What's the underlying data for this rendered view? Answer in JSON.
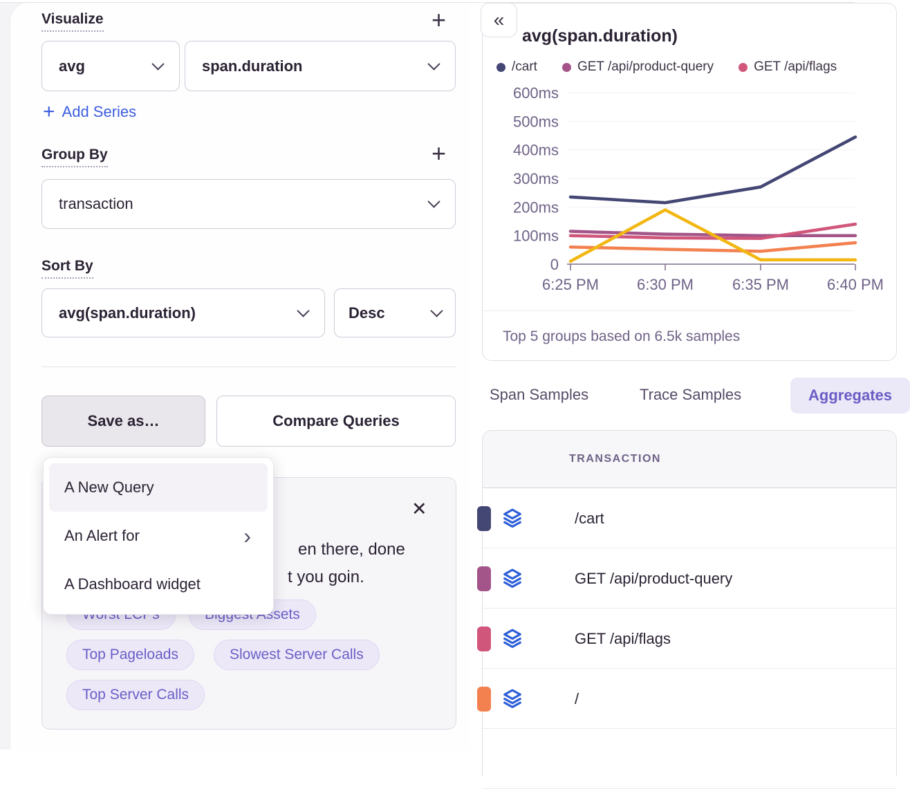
{
  "left_panel": {
    "visualize": {
      "label": "Visualize",
      "add_button": "+",
      "aggregate": "avg",
      "field": "span.duration",
      "add_series_plus": "+",
      "add_series": "Add Series"
    },
    "group_by": {
      "label": "Group By",
      "add_button": "+",
      "value": "transaction"
    },
    "sort_by": {
      "label": "Sort By",
      "field": "avg(span.duration)",
      "direction": "Desc"
    },
    "buttons": {
      "save_as": "Save as…",
      "compare": "Compare Queries"
    },
    "save_menu": {
      "items": [
        "A New Query",
        "An Alert for",
        "A Dashboard widget"
      ],
      "submenu_arrow": "›"
    },
    "banner": {
      "close_icon": "✕",
      "line1_fragment": "en there, done",
      "line2_fragment": "t you goin.",
      "hidden_chips": [
        {
          "label": "Worst LCPs"
        },
        {
          "label": "Biggest Assets"
        }
      ],
      "chips": [
        {
          "label": "Top Pageloads"
        },
        {
          "label": "Slowest Server Calls"
        },
        {
          "label": "Top Server Calls"
        }
      ]
    }
  },
  "right_panel": {
    "collapse_button": "«",
    "chart": {
      "title": "avg(span.duration)",
      "footer": "Top 5 groups based on 6.5k samples"
    },
    "tabs": [
      {
        "label": "Span Samples",
        "active": false
      },
      {
        "label": "Trace Samples",
        "active": false
      },
      {
        "label": "Aggregates",
        "active": true
      }
    ],
    "table": {
      "header": "TRANSACTION",
      "rows": [
        {
          "label": "/cart",
          "color": "#444674"
        },
        {
          "label": "GET /api/product-query",
          "color": "#a35488"
        },
        {
          "label": "GET /api/flags",
          "color": "#d1567b"
        },
        {
          "label": "/",
          "color": "#f38150"
        }
      ]
    }
  },
  "chart_data": {
    "type": "line",
    "title": "avg(span.duration)",
    "unit": "ms",
    "x": [
      "6:25 PM",
      "6:30 PM",
      "6:35 PM",
      "6:40 PM"
    ],
    "y_ticks": [
      {
        "value": 0,
        "label": "0"
      },
      {
        "value": 100,
        "label": "100ms"
      },
      {
        "value": 200,
        "label": "200ms"
      },
      {
        "value": 300,
        "label": "300ms"
      },
      {
        "value": 400,
        "label": "400ms"
      },
      {
        "value": 500,
        "label": "500ms"
      },
      {
        "value": 600,
        "label": "600ms"
      }
    ],
    "ylim": [
      0,
      600
    ],
    "grid": true,
    "legend_position": "top",
    "series": [
      {
        "name": "/cart",
        "color": "#444674",
        "values": [
          235,
          215,
          270,
          445
        ]
      },
      {
        "name": "GET /api/product-query",
        "color": "#a35488",
        "values": [
          115,
          105,
          100,
          100
        ]
      },
      {
        "name": "GET /api/flags",
        "color": "#d1567b",
        "values": [
          100,
          92,
          90,
          140
        ]
      },
      {
        "name": "/",
        "color": "#f38150",
        "values": [
          60,
          52,
          45,
          75
        ]
      },
      {
        "name": "",
        "color": "#f2b712",
        "values": [
          10,
          190,
          15,
          15
        ]
      }
    ]
  }
}
